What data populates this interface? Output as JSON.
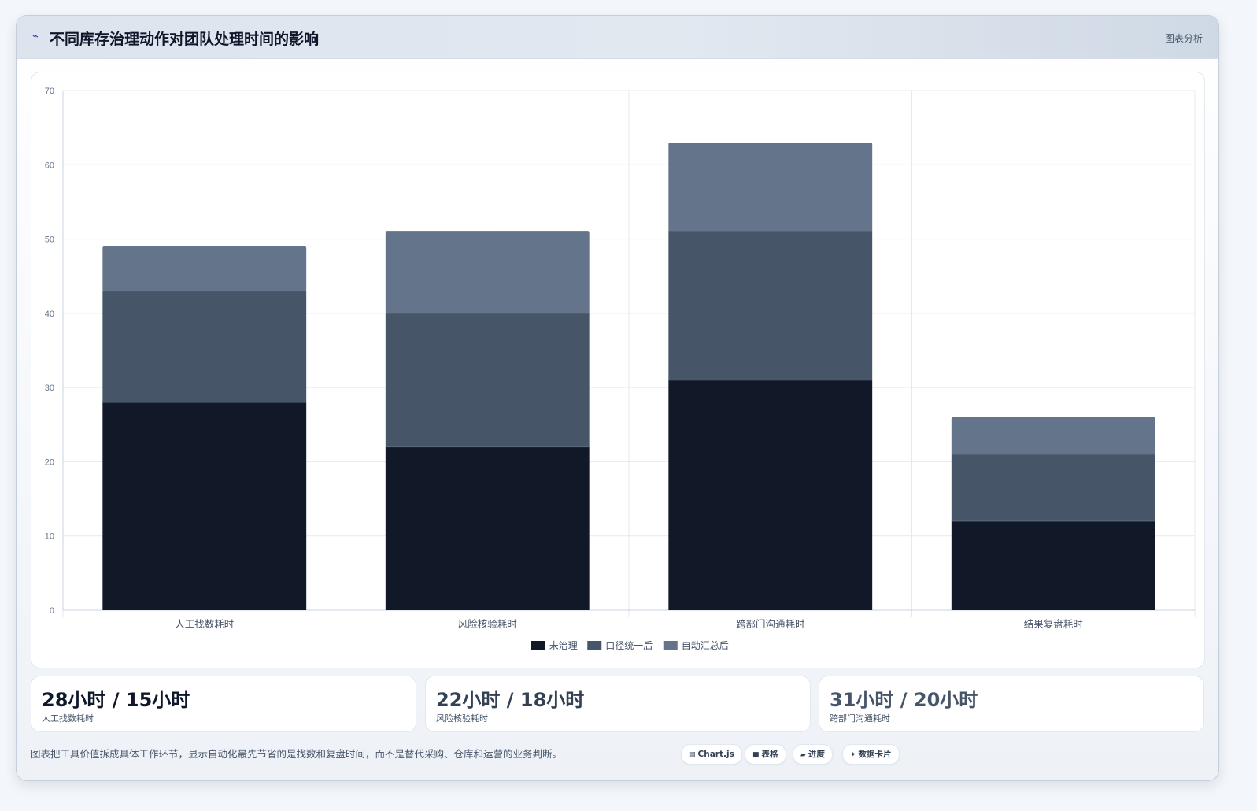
{
  "header": {
    "icon": "chart-line-icon",
    "title": "不同库存治理动作对团队处理时间的影响",
    "tag": "图表分析"
  },
  "chart_data": {
    "type": "bar",
    "stacked": true,
    "categories": [
      "人工找数耗时",
      "风险核验耗时",
      "跨部门沟通耗时",
      "结果复盘耗时"
    ],
    "series": [
      {
        "name": "未治理",
        "values": [
          28,
          22,
          31,
          12
        ],
        "color": "#111827"
      },
      {
        "name": "口径统一后",
        "values": [
          15,
          18,
          20,
          9
        ],
        "color": "#475569"
      },
      {
        "name": "自动汇总后",
        "values": [
          6,
          11,
          12,
          5
        ],
        "color": "#64748b"
      }
    ],
    "ylim": [
      0,
      70
    ],
    "yticks": [
      0,
      10,
      20,
      30,
      40,
      50,
      60,
      70
    ],
    "grid": true,
    "legend": "bottom-center",
    "title": "",
    "xlabel": "",
    "ylabel": ""
  },
  "stats": [
    {
      "value": "28小时 / 15小时",
      "label": "人工找数耗时",
      "color": "#0f172a"
    },
    {
      "value": "22小时 / 18小时",
      "label": "风险核验耗时",
      "color": "#334155"
    },
    {
      "value": "31小时 / 20小时",
      "label": "跨部门沟通耗时",
      "color": "#475569"
    }
  ],
  "note": "图表把工具价值拆成具体工作环节，显示自动化最先节省的是找数和复盘时间，而不是替代采购、仓库和运营的业务判断。",
  "chips": [
    {
      "icon": "▤",
      "label": "Chart.js"
    },
    {
      "icon": "■",
      "label": "表格"
    },
    {
      "icon": "▰",
      "label": "进度"
    },
    {
      "icon": "✦",
      "label": "数据卡片"
    }
  ]
}
